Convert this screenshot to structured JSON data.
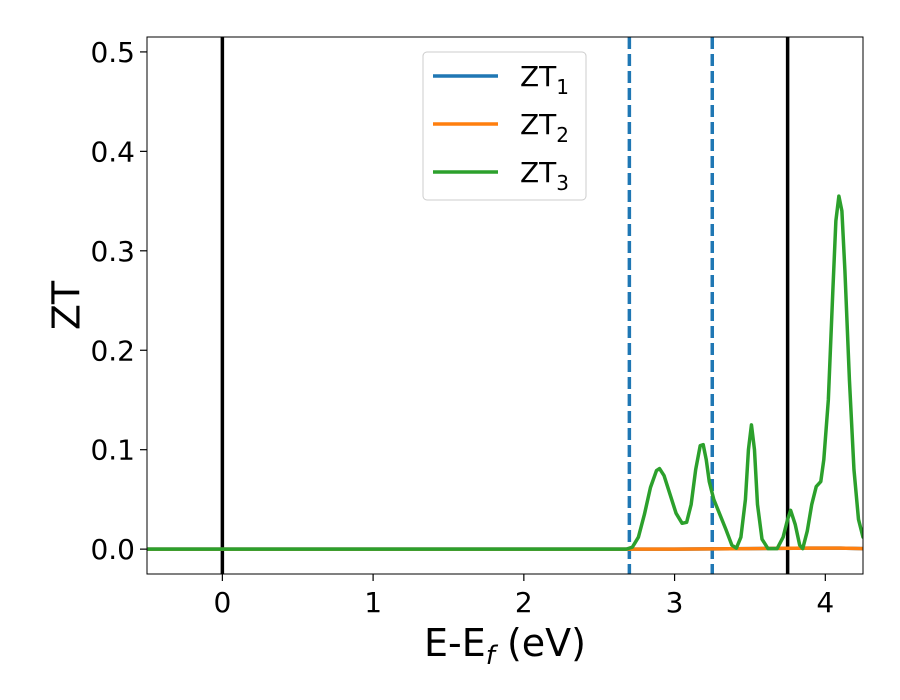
{
  "chart_data": {
    "type": "line",
    "title": "",
    "xlabel_main": "E-E",
    "xlabel_sub": "f",
    "xlabel_tail": " (eV)",
    "ylabel": "ZT",
    "xlim": [
      -0.5,
      4.25
    ],
    "ylim": [
      -0.025,
      0.515
    ],
    "xticks": [
      0,
      1,
      2,
      3,
      4
    ],
    "xtick_labels": [
      "0",
      "1",
      "2",
      "3",
      "4"
    ],
    "yticks": [
      0.0,
      0.1,
      0.2,
      0.3,
      0.4,
      0.5
    ],
    "ytick_labels": [
      "0.0",
      "0.1",
      "0.2",
      "0.3",
      "0.4",
      "0.5"
    ],
    "grid": false,
    "legend_position": "top-center",
    "legend": [
      {
        "base": "ZT",
        "sub": "1",
        "color": "#1f77b4"
      },
      {
        "base": "ZT",
        "sub": "2",
        "color": "#ff7f0e"
      },
      {
        "base": "ZT",
        "sub": "3",
        "color": "#2ca02c"
      }
    ],
    "vlines": [
      {
        "x": 0.0,
        "style": "solid",
        "color": "#000000"
      },
      {
        "x": 2.7,
        "style": "dashed",
        "color": "#1f77b4"
      },
      {
        "x": 3.25,
        "style": "dashed",
        "color": "#1f77b4"
      },
      {
        "x": 3.75,
        "style": "solid",
        "color": "#000000"
      }
    ],
    "series": [
      {
        "sub": "1",
        "color": "#1f77b4",
        "points": [
          [
            -0.5,
            0.0
          ],
          [
            2.7,
            0.0
          ],
          [
            3.0,
            0.0
          ],
          [
            3.5,
            0.0005
          ],
          [
            3.9,
            0.001
          ],
          [
            4.1,
            0.001
          ],
          [
            4.25,
            0.0005
          ]
        ]
      },
      {
        "sub": "2",
        "color": "#ff7f0e",
        "points": [
          [
            -0.5,
            0.0
          ],
          [
            2.7,
            0.0
          ],
          [
            3.0,
            0.0
          ],
          [
            3.5,
            0.0005
          ],
          [
            3.9,
            0.001
          ],
          [
            4.1,
            0.001
          ],
          [
            4.25,
            0.0005
          ]
        ]
      },
      {
        "sub": "3",
        "color": "#2ca02c",
        "points": [
          [
            -0.5,
            0.0
          ],
          [
            2.68,
            0.0
          ],
          [
            2.72,
            0.002
          ],
          [
            2.76,
            0.012
          ],
          [
            2.8,
            0.035
          ],
          [
            2.84,
            0.062
          ],
          [
            2.88,
            0.079
          ],
          [
            2.9,
            0.081
          ],
          [
            2.93,
            0.074
          ],
          [
            2.97,
            0.055
          ],
          [
            3.01,
            0.036
          ],
          [
            3.05,
            0.026
          ],
          [
            3.08,
            0.027
          ],
          [
            3.11,
            0.045
          ],
          [
            3.14,
            0.08
          ],
          [
            3.17,
            0.104
          ],
          [
            3.19,
            0.105
          ],
          [
            3.21,
            0.09
          ],
          [
            3.23,
            0.068
          ],
          [
            3.26,
            0.05
          ],
          [
            3.3,
            0.035
          ],
          [
            3.34,
            0.02
          ],
          [
            3.38,
            0.004
          ],
          [
            3.41,
            0.001
          ],
          [
            3.44,
            0.012
          ],
          [
            3.47,
            0.05
          ],
          [
            3.49,
            0.1
          ],
          [
            3.51,
            0.125
          ],
          [
            3.53,
            0.1
          ],
          [
            3.55,
            0.045
          ],
          [
            3.58,
            0.01
          ],
          [
            3.62,
            0.0005
          ],
          [
            3.68,
            0.0005
          ],
          [
            3.72,
            0.012
          ],
          [
            3.75,
            0.03
          ],
          [
            3.77,
            0.039
          ],
          [
            3.8,
            0.025
          ],
          [
            3.83,
            0.004
          ],
          [
            3.85,
            0.0005
          ],
          [
            3.88,
            0.018
          ],
          [
            3.91,
            0.045
          ],
          [
            3.94,
            0.063
          ],
          [
            3.97,
            0.068
          ],
          [
            3.99,
            0.09
          ],
          [
            4.02,
            0.15
          ],
          [
            4.05,
            0.26
          ],
          [
            4.07,
            0.33
          ],
          [
            4.09,
            0.355
          ],
          [
            4.11,
            0.34
          ],
          [
            4.13,
            0.28
          ],
          [
            4.16,
            0.17
          ],
          [
            4.19,
            0.08
          ],
          [
            4.22,
            0.03
          ],
          [
            4.25,
            0.012
          ]
        ]
      }
    ]
  }
}
